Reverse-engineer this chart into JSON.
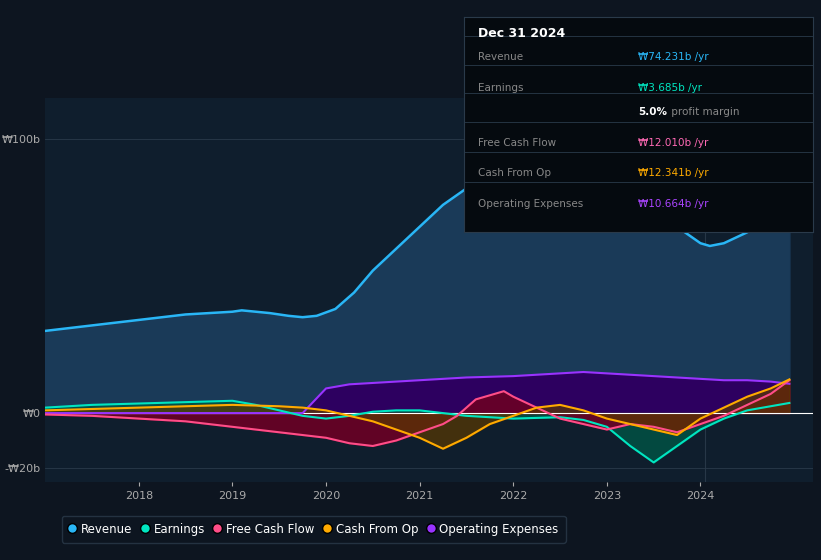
{
  "bg_color": "#0d1520",
  "plot_bg_color": "#0f1e2d",
  "title_date": "Dec 31 2024",
  "title_items": [
    {
      "label": "Revenue",
      "value": "₩74.231b /yr",
      "color": "#29b6f6"
    },
    {
      "label": "Earnings",
      "value": "₩3.685b /yr",
      "color": "#00e5c0"
    },
    {
      "label": "Free Cash Flow",
      "value": "₩12.010b /yr",
      "color": "#ff69b4"
    },
    {
      "label": "Cash From Op",
      "value": "₩12.341b /yr",
      "color": "#ffaa00"
    },
    {
      "label": "Operating Expenses",
      "value": "₩10.664b /yr",
      "color": "#aa44ff"
    }
  ],
  "ylim": [
    -25,
    115
  ],
  "yticks": [
    -20,
    0,
    100
  ],
  "ytick_labels": [
    "-₩20b",
    "₩0",
    "₩100b"
  ],
  "xlabel_years": [
    2018,
    2019,
    2020,
    2021,
    2022,
    2023,
    2024
  ],
  "revenue_color": "#29b6f6",
  "revenue_fill": "#1a3a58",
  "earnings_color": "#00e5c0",
  "earnings_fill": "#005545",
  "fcf_color": "#ff4d88",
  "fcf_fill": "#6b0025",
  "cashop_color": "#ffaa00",
  "cashop_fill": "#5a3800",
  "opex_color": "#9933ff",
  "opex_fill": "#2d0060",
  "legend_items": [
    {
      "label": "Revenue",
      "color": "#29b6f6"
    },
    {
      "label": "Earnings",
      "color": "#00e5c0"
    },
    {
      "label": "Free Cash Flow",
      "color": "#ff4d88"
    },
    {
      "label": "Cash From Op",
      "color": "#ffaa00"
    },
    {
      "label": "Operating Expenses",
      "color": "#9933ff"
    }
  ],
  "revenue_x": [
    2017.0,
    2017.25,
    2017.5,
    2017.75,
    2018.0,
    2018.25,
    2018.5,
    2018.75,
    2019.0,
    2019.1,
    2019.25,
    2019.4,
    2019.6,
    2019.75,
    2019.9,
    2020.1,
    2020.3,
    2020.5,
    2020.75,
    2021.0,
    2021.25,
    2021.5,
    2021.75,
    2022.0,
    2022.2,
    2022.4,
    2022.6,
    2022.9,
    2023.0,
    2023.25,
    2023.5,
    2023.75,
    2024.0,
    2024.1,
    2024.25,
    2024.5,
    2024.75,
    2024.95
  ],
  "revenue_y": [
    30,
    31,
    32,
    33,
    34,
    35,
    36,
    36.5,
    37,
    37.5,
    37,
    36.5,
    35.5,
    35,
    35.5,
    38,
    44,
    52,
    60,
    68,
    76,
    82,
    86,
    90,
    95,
    100,
    96,
    86,
    82,
    76,
    72,
    68,
    62,
    61,
    62,
    66,
    71,
    74
  ],
  "earnings_x": [
    2017.0,
    2017.5,
    2018.0,
    2018.5,
    2019.0,
    2019.25,
    2019.5,
    2019.75,
    2020.0,
    2020.25,
    2020.5,
    2020.75,
    2021.0,
    2021.25,
    2021.5,
    2022.0,
    2022.5,
    2022.75,
    2023.0,
    2023.25,
    2023.5,
    2023.75,
    2024.0,
    2024.25,
    2024.5,
    2024.75,
    2024.95
  ],
  "earnings_y": [
    2,
    3,
    3.5,
    4,
    4.5,
    3,
    1,
    -1,
    -2,
    -1,
    0.5,
    1,
    1,
    0,
    -1,
    -2,
    -1.5,
    -2.5,
    -5,
    -12,
    -18,
    -12,
    -6,
    -2,
    1,
    2.5,
    3.7
  ],
  "fcf_x": [
    2017.0,
    2017.5,
    2018.0,
    2018.5,
    2019.0,
    2019.5,
    2019.75,
    2020.0,
    2020.25,
    2020.5,
    2020.75,
    2021.0,
    2021.25,
    2021.4,
    2021.6,
    2021.9,
    2022.0,
    2022.25,
    2022.5,
    2022.75,
    2023.0,
    2023.25,
    2023.5,
    2023.75,
    2024.0,
    2024.25,
    2024.5,
    2024.75,
    2024.95
  ],
  "fcf_y": [
    -0.5,
    -1,
    -2,
    -3,
    -5,
    -7,
    -8,
    -9,
    -11,
    -12,
    -10,
    -7,
    -4,
    -1,
    5,
    8,
    6,
    2,
    -2,
    -4,
    -6,
    -4,
    -5,
    -7,
    -4,
    -1,
    3,
    7,
    12
  ],
  "cashop_x": [
    2017.0,
    2017.5,
    2018.0,
    2018.5,
    2019.0,
    2019.5,
    2019.75,
    2020.0,
    2020.25,
    2020.5,
    2020.75,
    2021.0,
    2021.25,
    2021.5,
    2021.75,
    2022.0,
    2022.25,
    2022.5,
    2022.75,
    2023.0,
    2023.25,
    2023.5,
    2023.75,
    2024.0,
    2024.25,
    2024.5,
    2024.75,
    2024.95
  ],
  "cashop_y": [
    1,
    1.5,
    2,
    2.5,
    3,
    2.5,
    2,
    1,
    -1,
    -3,
    -6,
    -9,
    -13,
    -9,
    -4,
    -1,
    2,
    3,
    1,
    -2,
    -4,
    -6,
    -8,
    -2,
    2,
    6,
    9,
    12.3
  ],
  "opex_x": [
    2017.0,
    2017.5,
    2018.0,
    2018.5,
    2019.0,
    2019.5,
    2019.75,
    2020.0,
    2020.25,
    2020.5,
    2020.75,
    2021.0,
    2021.5,
    2022.0,
    2022.5,
    2022.75,
    2023.0,
    2023.25,
    2023.5,
    2023.75,
    2024.0,
    2024.25,
    2024.5,
    2024.75,
    2024.95
  ],
  "opex_y": [
    0,
    0,
    0,
    0,
    0,
    0,
    0,
    9,
    10.5,
    11,
    11.5,
    12,
    13,
    13.5,
    14.5,
    15,
    14.5,
    14,
    13.5,
    13,
    12.5,
    12,
    12,
    11.5,
    10.7
  ]
}
